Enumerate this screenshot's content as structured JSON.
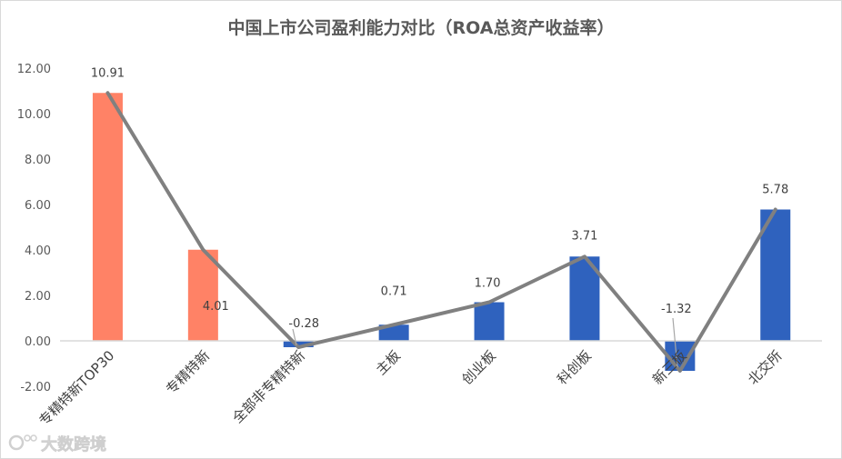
{
  "chart_data": {
    "type": "bar",
    "title": "中国上市公司盈利能力对比（ROA总资产收益率）",
    "categories": [
      "专精特新TOP30",
      "专精特新",
      "全部非专精特新",
      "主板",
      "创业板",
      "科创板",
      "新三板",
      "北交所"
    ],
    "values": [
      10.91,
      4.01,
      -0.28,
      0.71,
      1.7,
      3.71,
      -1.32,
      5.78
    ],
    "data_labels": [
      "10.91",
      "4.01",
      "-0.28",
      "0.71",
      "1.70",
      "3.71",
      "-1.32",
      "5.78"
    ],
    "overlay_line": {
      "type": "line",
      "values": [
        10.91,
        4.01,
        -0.28,
        0.71,
        1.7,
        3.71,
        -1.32,
        5.78
      ],
      "color": "#808080"
    },
    "bar_colors": [
      "#FF8266",
      "#FF8266",
      "#2F62BE",
      "#2F62BE",
      "#2F62BE",
      "#2F62BE",
      "#2F62BE",
      "#2F62BE"
    ],
    "ylim": [
      -2,
      12
    ],
    "yticks": [
      -2,
      0,
      2,
      4,
      6,
      8,
      10,
      12
    ],
    "ytick_labels": [
      "-2.00",
      "0.00",
      "2.00",
      "4.00",
      "6.00",
      "8.00",
      "10.00",
      "12.00"
    ],
    "grid": false,
    "legend": "none",
    "xlabel": "",
    "ylabel": ""
  },
  "watermark": "大数跨境"
}
